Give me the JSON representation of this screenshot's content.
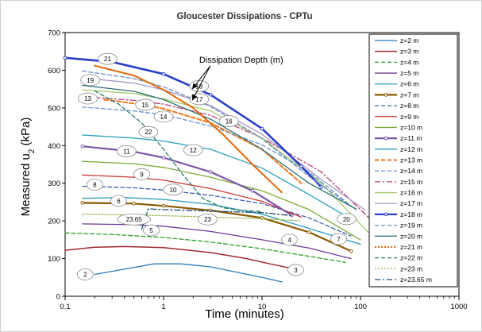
{
  "chart_data": {
    "type": "line",
    "title": "Gloucester Dissipations - CPTu",
    "xlabel": "Time (minutes)",
    "ylabel": "Measured u",
    "ylabel_sub": "2",
    "ylabel_unit": " (kPa)",
    "xscale": "log",
    "xlim": [
      0.1,
      1000
    ],
    "ylim": [
      0,
      700
    ],
    "xticks": [
      {
        "value": 0.1,
        "label": "0.1"
      },
      {
        "value": 1,
        "label": "1"
      },
      {
        "value": 10,
        "label": "10"
      },
      {
        "value": 100,
        "label": "100"
      },
      {
        "value": 1000,
        "label": "1000"
      }
    ],
    "yticks": [
      {
        "value": 0,
        "label": "0"
      },
      {
        "value": 100,
        "label": "100"
      },
      {
        "value": 200,
        "label": "200"
      },
      {
        "value": 300,
        "label": "300"
      },
      {
        "value": 400,
        "label": "400"
      },
      {
        "value": 500,
        "label": "500"
      },
      {
        "value": 600,
        "label": "600"
      },
      {
        "value": 700,
        "label": "700"
      }
    ],
    "grid": false,
    "legend_position": "right",
    "annotation": {
      "text": "Dissipation Depth (m)",
      "x": 2.3,
      "y": 620,
      "arrows": [
        [
          1.95,
          550
        ],
        [
          1.95,
          520
        ]
      ]
    },
    "series": [
      {
        "name": "z=2 m",
        "color": "#2b7bb9",
        "style": "solid",
        "width": 1.3,
        "points": [
          [
            0.2,
            58
          ],
          [
            0.4,
            72
          ],
          [
            0.8,
            86
          ],
          [
            1.5,
            86
          ],
          [
            3,
            78
          ],
          [
            6,
            62
          ],
          [
            10,
            50
          ],
          [
            16,
            38
          ]
        ]
      },
      {
        "name": "z=3 m",
        "color": "#a0292e",
        "style": "solid",
        "width": 1.5,
        "points": [
          [
            0.1,
            122
          ],
          [
            0.2,
            130
          ],
          [
            0.4,
            132
          ],
          [
            1,
            129
          ],
          [
            3,
            116
          ],
          [
            7,
            100
          ],
          [
            12,
            86
          ],
          [
            24,
            70
          ]
        ]
      },
      {
        "name": "z=4 m",
        "color": "#2ca02c",
        "style": "dash",
        "width": 1.3,
        "points": [
          [
            0.1,
            168
          ],
          [
            0.3,
            164
          ],
          [
            1,
            156
          ],
          [
            3,
            144
          ],
          [
            10,
            126
          ],
          [
            30,
            106
          ],
          [
            70,
            90
          ]
        ]
      },
      {
        "name": "z=5 m",
        "color": "#6f3b96",
        "style": "solid",
        "width": 1.3,
        "points": [
          [
            0.15,
            192
          ],
          [
            0.5,
            190
          ],
          [
            1,
            186
          ],
          [
            3,
            172
          ],
          [
            10,
            150
          ],
          [
            30,
            128
          ],
          [
            80,
            100
          ]
        ]
      },
      {
        "name": "z=6 m",
        "color": "#2a9bb7",
        "style": "solid",
        "width": 1.3,
        "points": [
          [
            0.15,
            260
          ],
          [
            0.4,
            262
          ],
          [
            1,
            257
          ],
          [
            3,
            244
          ],
          [
            10,
            218
          ],
          [
            30,
            180
          ],
          [
            100,
            138
          ]
        ]
      },
      {
        "name": "z=7 m",
        "color": "#8b5a00",
        "style": "solid",
        "width": 2.2,
        "marker": true,
        "points": [
          [
            0.15,
            248
          ],
          [
            0.5,
            246
          ],
          [
            1,
            240
          ],
          [
            3,
            228
          ],
          [
            10,
            208
          ],
          [
            30,
            170
          ],
          [
            80,
            120
          ]
        ]
      },
      {
        "name": "z=8 m",
        "color": "#3c63b0",
        "style": "dash",
        "width": 1.3,
        "points": [
          [
            0.15,
            292
          ],
          [
            0.5,
            288
          ],
          [
            1,
            282
          ],
          [
            3,
            268
          ],
          [
            10,
            246
          ],
          [
            30,
            208
          ],
          [
            80,
            160
          ]
        ]
      },
      {
        "name": "z=9 m",
        "color": "#cf3a34",
        "style": "solid",
        "width": 1.3,
        "points": [
          [
            0.15,
            322
          ],
          [
            0.5,
            316
          ],
          [
            1,
            308
          ],
          [
            3,
            286
          ],
          [
            10,
            252
          ],
          [
            25,
            210
          ]
        ]
      },
      {
        "name": "z=10 m",
        "color": "#7ea933",
        "style": "solid",
        "width": 1.3,
        "points": [
          [
            0.15,
            358
          ],
          [
            0.5,
            352
          ],
          [
            1,
            342
          ],
          [
            3,
            316
          ],
          [
            10,
            280
          ],
          [
            30,
            230
          ],
          [
            100,
            150
          ]
        ]
      },
      {
        "name": "z=11 m",
        "color": "#7b55a9",
        "style": "solid",
        "width": 2.2,
        "marker": true,
        "points": [
          [
            0.15,
            398
          ],
          [
            0.5,
            384
          ],
          [
            1,
            368
          ],
          [
            3,
            330
          ],
          [
            8,
            280
          ],
          [
            20,
            215
          ]
        ]
      },
      {
        "name": "z=12 m",
        "color": "#27a0bd",
        "style": "solid",
        "width": 1.3,
        "points": [
          [
            0.15,
            428
          ],
          [
            0.5,
            420
          ],
          [
            1,
            412
          ],
          [
            3,
            390
          ],
          [
            10,
            340
          ],
          [
            30,
            270
          ],
          [
            80,
            205
          ]
        ]
      },
      {
        "name": "z=13 m",
        "color": "#f07f2a",
        "style": "dash",
        "width": 2.2,
        "points": [
          [
            0.25,
            522
          ],
          [
            0.5,
            512
          ],
          [
            1,
            498
          ],
          [
            3,
            460
          ],
          [
            10,
            390
          ],
          [
            25,
            300
          ]
        ]
      },
      {
        "name": "z=14 m",
        "color": "#6f95cf",
        "style": "dash",
        "width": 1.3,
        "points": [
          [
            0.15,
            502
          ],
          [
            0.5,
            492
          ],
          [
            1,
            482
          ],
          [
            3,
            452
          ],
          [
            10,
            402
          ],
          [
            30,
            330
          ],
          [
            80,
            240
          ]
        ]
      },
      {
        "name": "z=15 m",
        "color": "#b5427f",
        "style": "dashdot",
        "width": 1.3,
        "points": [
          [
            0.2,
            528
          ],
          [
            0.5,
            520
          ],
          [
            1,
            510
          ],
          [
            3,
            480
          ],
          [
            10,
            420
          ],
          [
            40,
            330
          ],
          [
            120,
            210
          ]
        ]
      },
      {
        "name": "z=16 m",
        "color": "#a6c86a",
        "style": "solid",
        "width": 1.3,
        "points": [
          [
            0.15,
            548
          ],
          [
            0.5,
            538
          ],
          [
            1,
            524
          ],
          [
            3,
            492
          ],
          [
            10,
            420
          ],
          [
            40,
            300
          ],
          [
            120,
            170
          ]
        ]
      },
      {
        "name": "z=17 m",
        "color": "#a497c5",
        "style": "solid",
        "width": 1.3,
        "points": [
          [
            0.15,
            580
          ],
          [
            0.5,
            566
          ],
          [
            1,
            548
          ],
          [
            3,
            506
          ],
          [
            10,
            430
          ],
          [
            40,
            310
          ],
          [
            110,
            230
          ]
        ]
      },
      {
        "name": "z=18 m",
        "color": "#2a3fc8",
        "style": "solid",
        "width": 2.6,
        "marker": true,
        "points": [
          [
            0.1,
            633
          ],
          [
            0.3,
            622
          ],
          [
            1,
            590
          ],
          [
            3,
            535
          ],
          [
            10,
            445
          ],
          [
            25,
            345
          ],
          [
            40,
            290
          ]
        ]
      },
      {
        "name": "z=19 m",
        "color": "#6a8fc5",
        "style": "dash",
        "width": 1.3,
        "points": [
          [
            0.15,
            598
          ],
          [
            0.5,
            578
          ],
          [
            1,
            556
          ],
          [
            3,
            504
          ],
          [
            10,
            418
          ],
          [
            30,
            318
          ],
          [
            90,
            230
          ]
        ]
      },
      {
        "name": "z=20 m",
        "color": "#296f73",
        "style": "solid",
        "width": 1.3,
        "points": [
          [
            0.15,
            560
          ],
          [
            0.5,
            544
          ],
          [
            1,
            522
          ],
          [
            3,
            470
          ],
          [
            10,
            390
          ],
          [
            30,
            300
          ],
          [
            90,
            232
          ]
        ]
      },
      {
        "name": "z=21 m",
        "color": "#e06a10",
        "style": "dot",
        "width": 2.2,
        "points": [
          [
            0.2,
            612
          ],
          [
            0.5,
            586
          ],
          [
            1,
            548
          ],
          [
            2,
            500
          ],
          [
            4,
            430
          ],
          [
            8,
            350
          ],
          [
            16,
            275
          ]
        ]
      },
      {
        "name": "z=22 m",
        "color": "#2a7e6a",
        "style": "dash",
        "width": 1.3,
        "points": [
          [
            0.2,
            545
          ],
          [
            0.35,
            510
          ],
          [
            0.6,
            460
          ],
          [
            1,
            390
          ],
          [
            1.6,
            320
          ],
          [
            2.5,
            260
          ],
          [
            4,
            235
          ],
          [
            6,
            228
          ],
          [
            10,
            225
          ]
        ]
      },
      {
        "name": "z=23 m",
        "color": "#9bbb59",
        "style": "dot",
        "width": 1.3,
        "points": [
          [
            0.15,
            218
          ],
          [
            0.5,
            216
          ],
          [
            1,
            214
          ],
          [
            3,
            210
          ],
          [
            10,
            206
          ],
          [
            25,
            200
          ]
        ]
      },
      {
        "name": "z=23.65 m",
        "color": "#1f4e79",
        "style": "dashdot",
        "width": 1.3,
        "points": [
          [
            0.6,
            178
          ],
          [
            0.7,
            232
          ],
          [
            1,
            230
          ],
          [
            3,
            226
          ],
          [
            10,
            222
          ],
          [
            20,
            214
          ]
        ]
      }
    ],
    "labels": [
      {
        "text": "2",
        "x": 0.16,
        "y": 58
      },
      {
        "text": "3",
        "x": 22,
        "y": 70
      },
      {
        "text": "4",
        "x": 19,
        "y": 150
      },
      {
        "text": "5",
        "x": 0.75,
        "y": 175
      },
      {
        "text": "6",
        "x": 0.35,
        "y": 253
      },
      {
        "text": "7",
        "x": 60,
        "y": 152
      },
      {
        "text": "8",
        "x": 0.2,
        "y": 296
      },
      {
        "text": "9",
        "x": 0.6,
        "y": 324
      },
      {
        "text": "10",
        "x": 1.25,
        "y": 283
      },
      {
        "text": "11",
        "x": 0.42,
        "y": 385
      },
      {
        "text": "12",
        "x": 2,
        "y": 388
      },
      {
        "text": "13",
        "x": 0.17,
        "y": 525
      },
      {
        "text": "14",
        "x": 1,
        "y": 477
      },
      {
        "text": "15",
        "x": 0.65,
        "y": 508
      },
      {
        "text": "16",
        "x": 4.6,
        "y": 465
      },
      {
        "text": "17",
        "x": 2.3,
        "y": 523
      },
      {
        "text": "18",
        "x": 2.3,
        "y": 558
      },
      {
        "text": "19",
        "x": 0.18,
        "y": 574
      },
      {
        "text": "20",
        "x": 72,
        "y": 205
      },
      {
        "text": "21",
        "x": 0.27,
        "y": 630
      },
      {
        "text": "22",
        "x": 0.7,
        "y": 436
      },
      {
        "text": "23",
        "x": 2.8,
        "y": 204
      },
      {
        "text": "23.65",
        "x": 0.5,
        "y": 204
      }
    ]
  }
}
